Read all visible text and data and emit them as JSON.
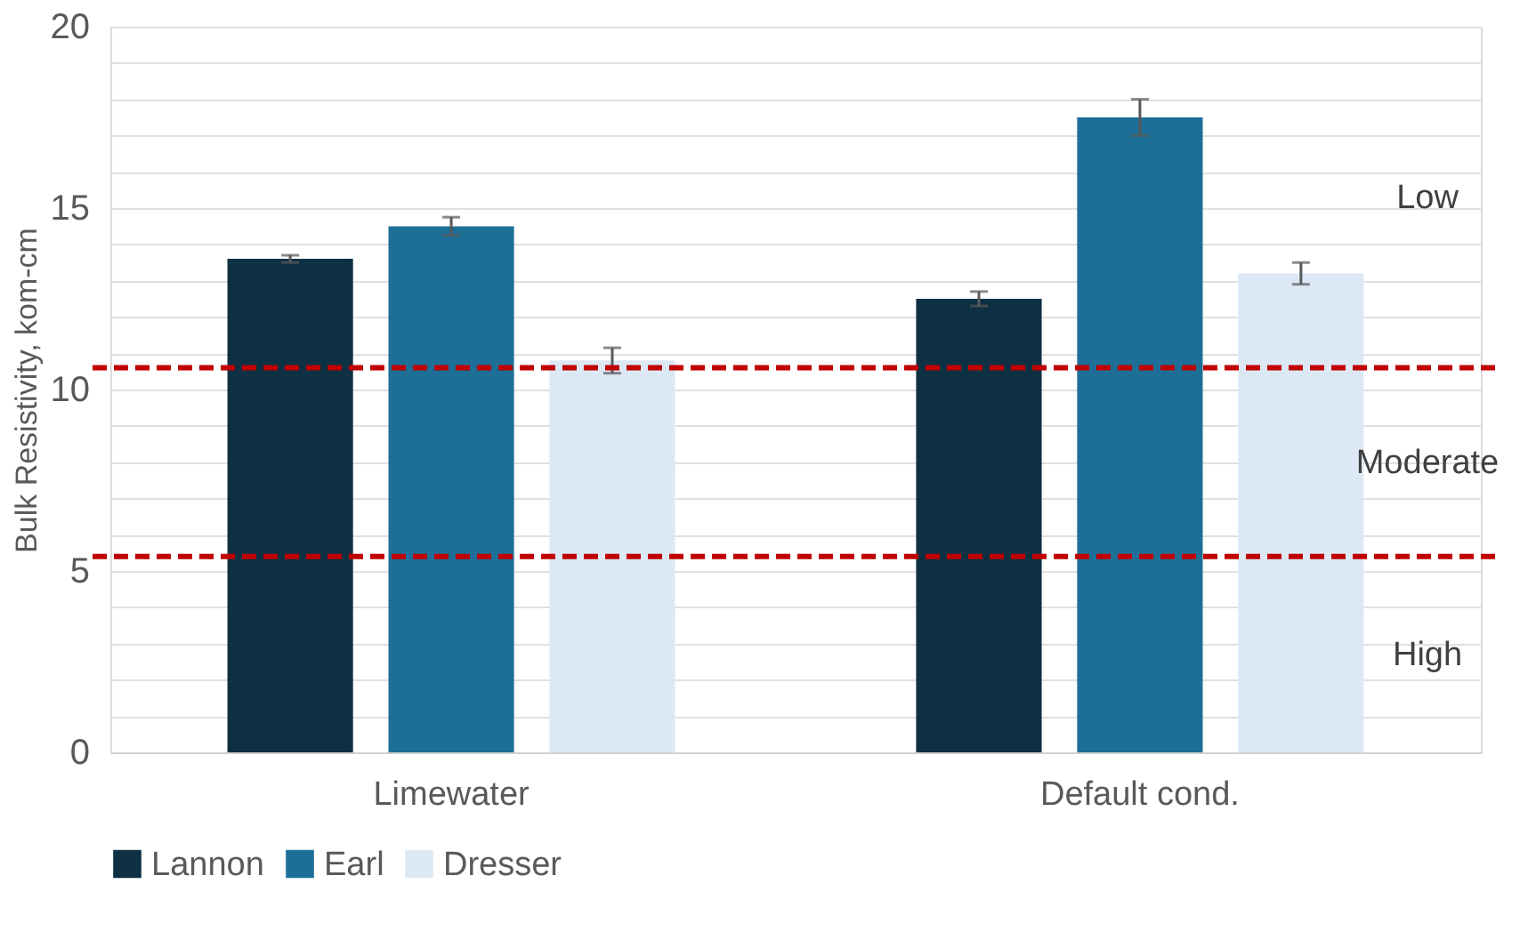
{
  "chart_data": {
    "type": "bar",
    "ylabel": "Bulk Resistivity, kom-cm",
    "categories": [
      "Limewater",
      "Default cond."
    ],
    "series": [
      {
        "name": "Lannon",
        "color": "#0e3043",
        "values": [
          13.6,
          12.5
        ],
        "errors": [
          0.1,
          0.2
        ]
      },
      {
        "name": "Earl",
        "color": "#1d6f98",
        "values": [
          14.5,
          17.5
        ],
        "errors": [
          0.25,
          0.5
        ]
      },
      {
        "name": "Dresser",
        "color": "#dce9f5",
        "values": [
          10.8,
          13.2
        ],
        "errors": [
          0.35,
          0.3
        ]
      }
    ],
    "ylim": [
      0,
      20
    ],
    "yticks": [
      0,
      {
        "value": 1,
        "label": null
      },
      {
        "value": 2,
        "label": null
      },
      {
        "value": 3,
        "label": null
      },
      {
        "value": 4,
        "label": null
      },
      5,
      {
        "value": 6,
        "label": null
      },
      {
        "value": 7,
        "label": null
      },
      {
        "value": 8,
        "label": null
      },
      {
        "value": 9,
        "label": null
      },
      10,
      {
        "value": 11,
        "label": null
      },
      {
        "value": 12,
        "label": null
      },
      {
        "value": 13,
        "label": null
      },
      {
        "value": 14,
        "label": null
      },
      15,
      {
        "value": 16,
        "label": null
      },
      {
        "value": 17,
        "label": null
      },
      {
        "value": 18,
        "label": null
      },
      {
        "value": 19,
        "label": null
      },
      20
    ],
    "ref_lines": [
      {
        "axis": "y",
        "value": 10.6,
        "color": "#c00000",
        "line_style": "dashed"
      },
      {
        "axis": "y",
        "value": 5.4,
        "color": "#c00000",
        "line_style": "dashed"
      }
    ],
    "annotations": [
      "Low",
      "Moderate",
      "High"
    ],
    "grid": "y",
    "legend": "bottom"
  }
}
